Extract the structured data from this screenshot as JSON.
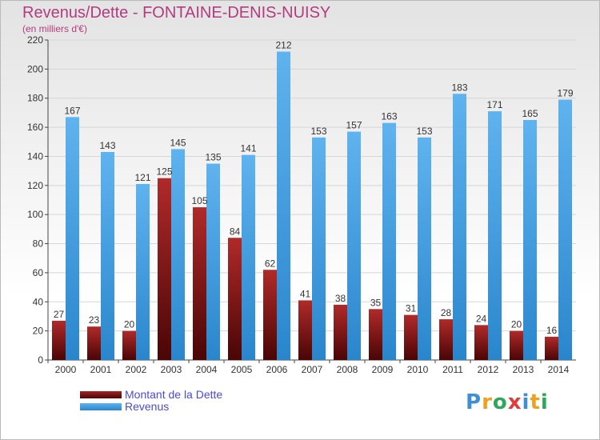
{
  "title": "Revenus/Dette - FONTAINE-DENIS-NUISY",
  "subtitle": "(en milliers d'€)",
  "logo": {
    "letters": [
      "P",
      "r",
      "o",
      "x",
      "i",
      "t",
      "i"
    ]
  },
  "legend": [
    {
      "label": "Montant de la Dette",
      "color": "#6e0b0b"
    },
    {
      "label": "Revenus",
      "color": "#3f9ee2"
    }
  ],
  "chart_data": {
    "type": "bar",
    "title": "Revenus/Dette - FONTAINE-DENIS-NUISY",
    "ylabel": "(en milliers d'€)",
    "xlabel": "",
    "ylim": [
      0,
      220
    ],
    "yticks": [
      0,
      20,
      40,
      60,
      80,
      100,
      120,
      140,
      160,
      180,
      200,
      220
    ],
    "grid": true,
    "legend_position": "bottom-left",
    "categories": [
      "2000",
      "2001",
      "2002",
      "2003",
      "2004",
      "2005",
      "2006",
      "2007",
      "2008",
      "2009",
      "2010",
      "2011",
      "2012",
      "2013",
      "2014"
    ],
    "series": [
      {
        "name": "Montant de la Dette",
        "color_top": "#b02a2a",
        "color_bottom": "#4a0505",
        "values": [
          27,
          23,
          20,
          125,
          105,
          84,
          62,
          41,
          38,
          35,
          31,
          28,
          24,
          20,
          16
        ]
      },
      {
        "name": "Revenus",
        "color_top": "#5fb3ee",
        "color_bottom": "#2a86cc",
        "values": [
          167,
          143,
          121,
          145,
          135,
          141,
          212,
          153,
          157,
          163,
          153,
          183,
          171,
          165,
          179
        ]
      }
    ]
  }
}
